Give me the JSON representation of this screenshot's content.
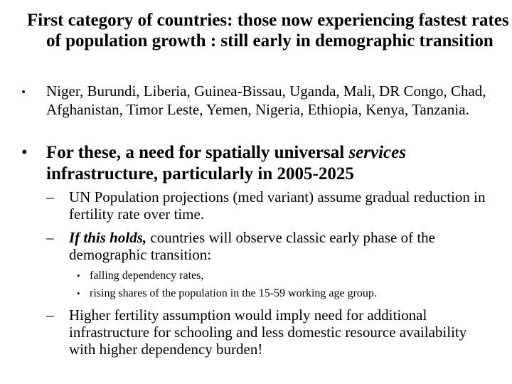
{
  "heading": "First category of countries: those now experiencing fastest rates of population growth : still early in demographic transition",
  "bullet_char": "•",
  "dash_char": "–",
  "bullet1": "Niger, Burundi, Liberia, Guinea-Bissau, Uganda, Mali, DR Congo, Chad, Afghanistan, Timor Leste, Yemen, Nigeria, Ethiopia, Kenya, Tanzania.",
  "bullet2": {
    "part1": "For these, a need for spatially universal ",
    "italic": "services",
    "part2": " infrastructure, particularly in 2005-2025"
  },
  "sub1": "UN Population projections (med variant) assume gradual reduction in fertility rate over time.",
  "sub2": {
    "emphasis": "If this holds,",
    "rest": " countries will observe classic early phase of the demographic transition:"
  },
  "subsub": [
    "falling dependency rates,",
    "rising shares of the population in the 15-59 working age group."
  ],
  "sub3": "Higher fertility assumption would imply need for additional infrastructure for schooling and less domestic resource availability with higher dependency burden!"
}
